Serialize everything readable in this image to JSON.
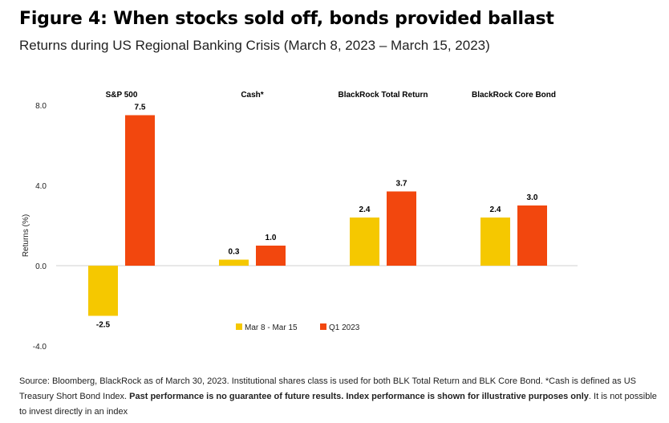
{
  "title": "Figure 4: When stocks sold off, bonds provided ballast",
  "subtitle": "Returns during US Regional Banking Crisis (March 8, 2023 – March 15, 2023)",
  "chart_data": {
    "type": "bar",
    "categories": [
      "S&P 500",
      "Cash*",
      "BlackRock Total Return",
      "BlackRock Core Bond"
    ],
    "series": [
      {
        "name": "Mar 8 - Mar 15",
        "values": [
          -2.5,
          0.3,
          2.4,
          2.4
        ],
        "color": "#F5C800"
      },
      {
        "name": "Q1 2023",
        "values": [
          7.5,
          1.0,
          3.7,
          3.0
        ],
        "color": "#F2470E"
      }
    ],
    "value_labels": [
      [
        "-2.5",
        "0.3",
        "2.4",
        "2.4"
      ],
      [
        "7.5",
        "1.0",
        "3.7",
        "3.0"
      ]
    ],
    "ylabel": "Returns (%)",
    "ylim": [
      -4,
      8
    ],
    "yticks": [
      8,
      4,
      0,
      -4
    ],
    "ytick_labels": [
      "8.0",
      "4.0",
      "0.0",
      "-4.0"
    ],
    "legend_position": "bottom-center",
    "grid": false
  },
  "source": {
    "normal_1": "Source: Bloomberg, BlackRock as of March 30, 2023. Institutional shares class is used for both BLK Total Return and BLK Core Bond. *Cash is defined as US Treasury Short Bond Index. ",
    "bold": "Past performance is no guarantee of future results. Index performance is shown for illustrative purposes only",
    "normal_2": ". It is not possible to invest directly in an index"
  }
}
